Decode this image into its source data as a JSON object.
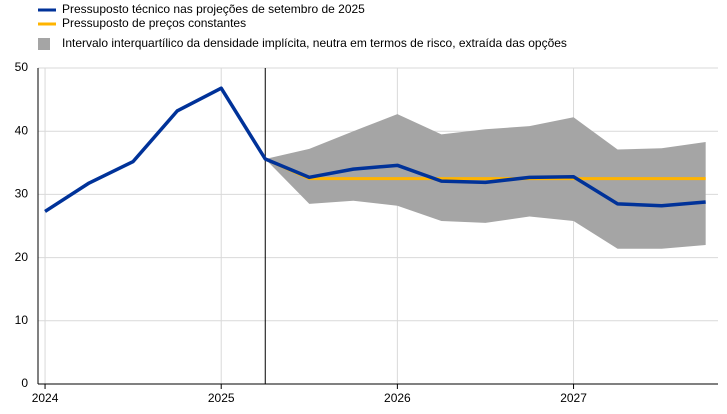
{
  "chart_data": {
    "type": "line",
    "x": [
      2024,
      2024.25,
      2024.5,
      2024.75,
      2025,
      2025.25,
      2025.5,
      2025.75,
      2026,
      2026.25,
      2026.5,
      2026.75,
      2027,
      2027.25,
      2027.5,
      2027.75
    ],
    "series": [
      {
        "name": "Pressuposto técnico nas projeções de setembro de 2025",
        "color": "#003299",
        "values": [
          27.3,
          31.8,
          35.2,
          43.2,
          46.8,
          35.6,
          32.7,
          34.0,
          34.6,
          32.1,
          31.9,
          32.7,
          32.8,
          28.5,
          28.2,
          28.8
        ]
      },
      {
        "name": "Pressuposto de preços constantes",
        "color": "#ffb400",
        "values": [
          null,
          null,
          null,
          null,
          null,
          35.6,
          32.5,
          32.5,
          32.5,
          32.5,
          32.5,
          32.5,
          32.5,
          32.5,
          32.5,
          32.5
        ]
      }
    ],
    "band": {
      "name": "Intervalo interquartílico da densidade implícita, neutra em termos de risco, extraída das opções",
      "color": "#a5a5a5",
      "upper": [
        null,
        null,
        null,
        null,
        null,
        35.6,
        37.2,
        40.0,
        42.7,
        39.5,
        40.3,
        40.8,
        42.2,
        37.1,
        37.3,
        38.3
      ],
      "lower": [
        null,
        null,
        null,
        null,
        null,
        35.6,
        28.5,
        29.0,
        28.2,
        25.8,
        25.5,
        26.5,
        25.8,
        21.4,
        21.4,
        22.0
      ]
    },
    "vline_x": 2025.25,
    "xlim": [
      2023.96,
      2027.82
    ],
    "xticks": [
      2024,
      2025,
      2026,
      2027
    ],
    "ylim": [
      0,
      50
    ],
    "yticks": [
      0,
      10,
      20,
      30,
      40,
      50
    ],
    "grid": true
  }
}
